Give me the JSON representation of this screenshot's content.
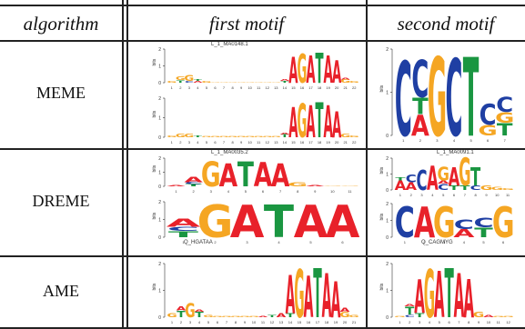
{
  "table": {
    "headers": [
      "algorithm",
      "first motif",
      "second motif"
    ],
    "rows": [
      {
        "label": "MEME"
      },
      {
        "label": "DREME"
      },
      {
        "label": "AME"
      }
    ]
  },
  "logo_titles": {
    "meme_first": "L_1_MA0148.1",
    "dreme_first": "L_1_MA0035.2",
    "dreme_second": "L_1_MA0091.1"
  },
  "logo_captions": {
    "dreme_first_bottom": "Q_HGATAA",
    "dreme_second_bottom": "Q_CAGMYG"
  },
  "axis": {
    "ylabel": "bits"
  },
  "colors": {
    "A": "#e8212a",
    "C": "#1f3fa3",
    "G": "#f5a623",
    "T": "#1a9641"
  }
}
